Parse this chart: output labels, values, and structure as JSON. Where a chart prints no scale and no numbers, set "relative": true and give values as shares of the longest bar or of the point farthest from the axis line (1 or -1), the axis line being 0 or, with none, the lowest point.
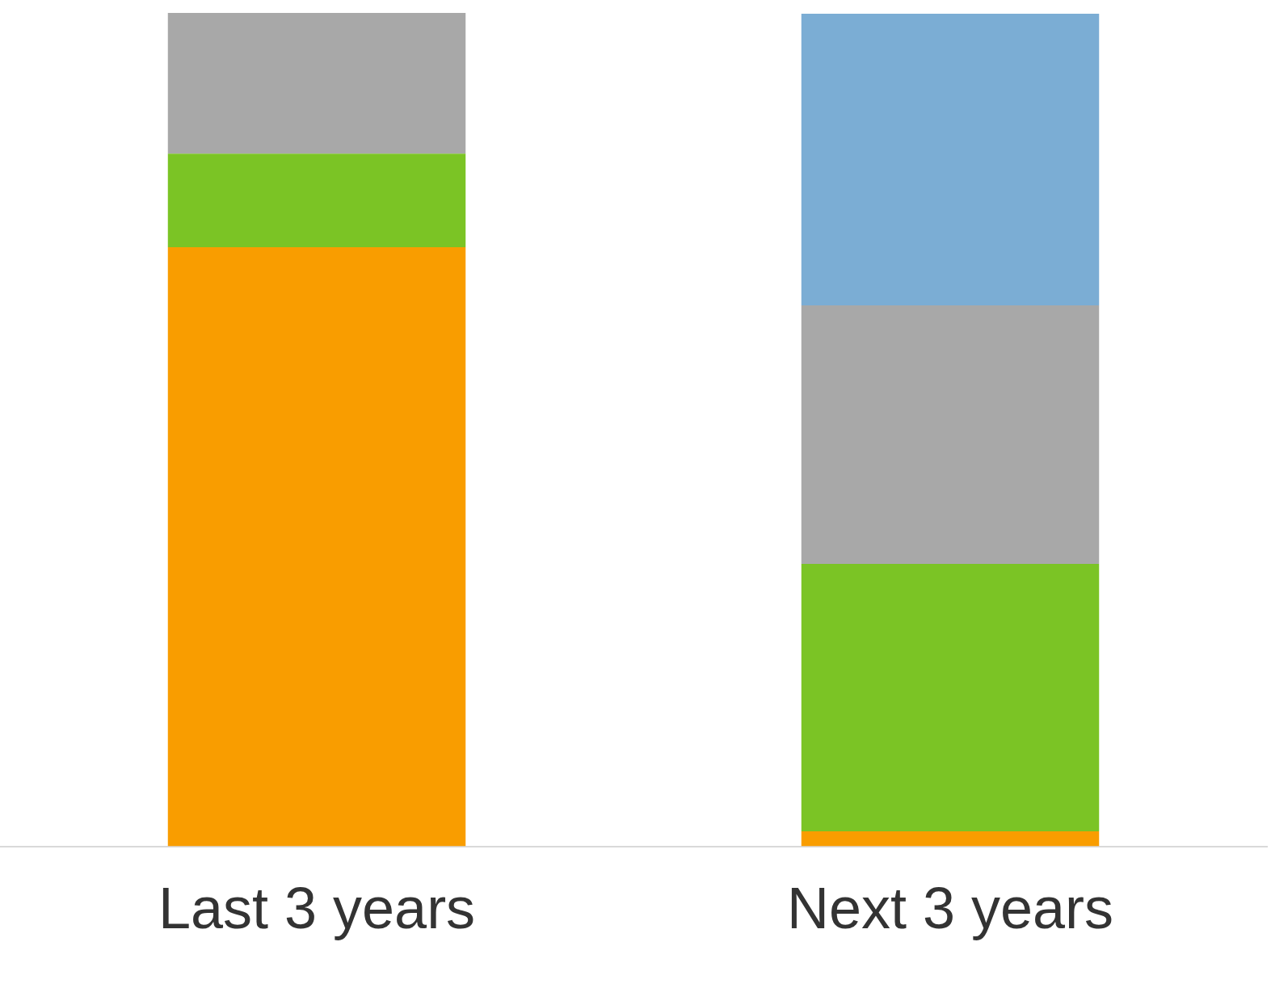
{
  "chart_data": {
    "type": "bar",
    "stacked": true,
    "relative": true,
    "categories": [
      "Last 3 years",
      "Next 3 years"
    ],
    "series": [
      {
        "color": "#f99d00",
        "values": [
          0.719,
          0.018
        ]
      },
      {
        "color": "#7bc425",
        "values": [
          0.112,
          0.321
        ]
      },
      {
        "color": "#a8a8a8",
        "values": [
          0.169,
          0.31
        ]
      },
      {
        "color": "#7badd4",
        "values": [
          null,
          0.35
        ]
      }
    ]
  }
}
